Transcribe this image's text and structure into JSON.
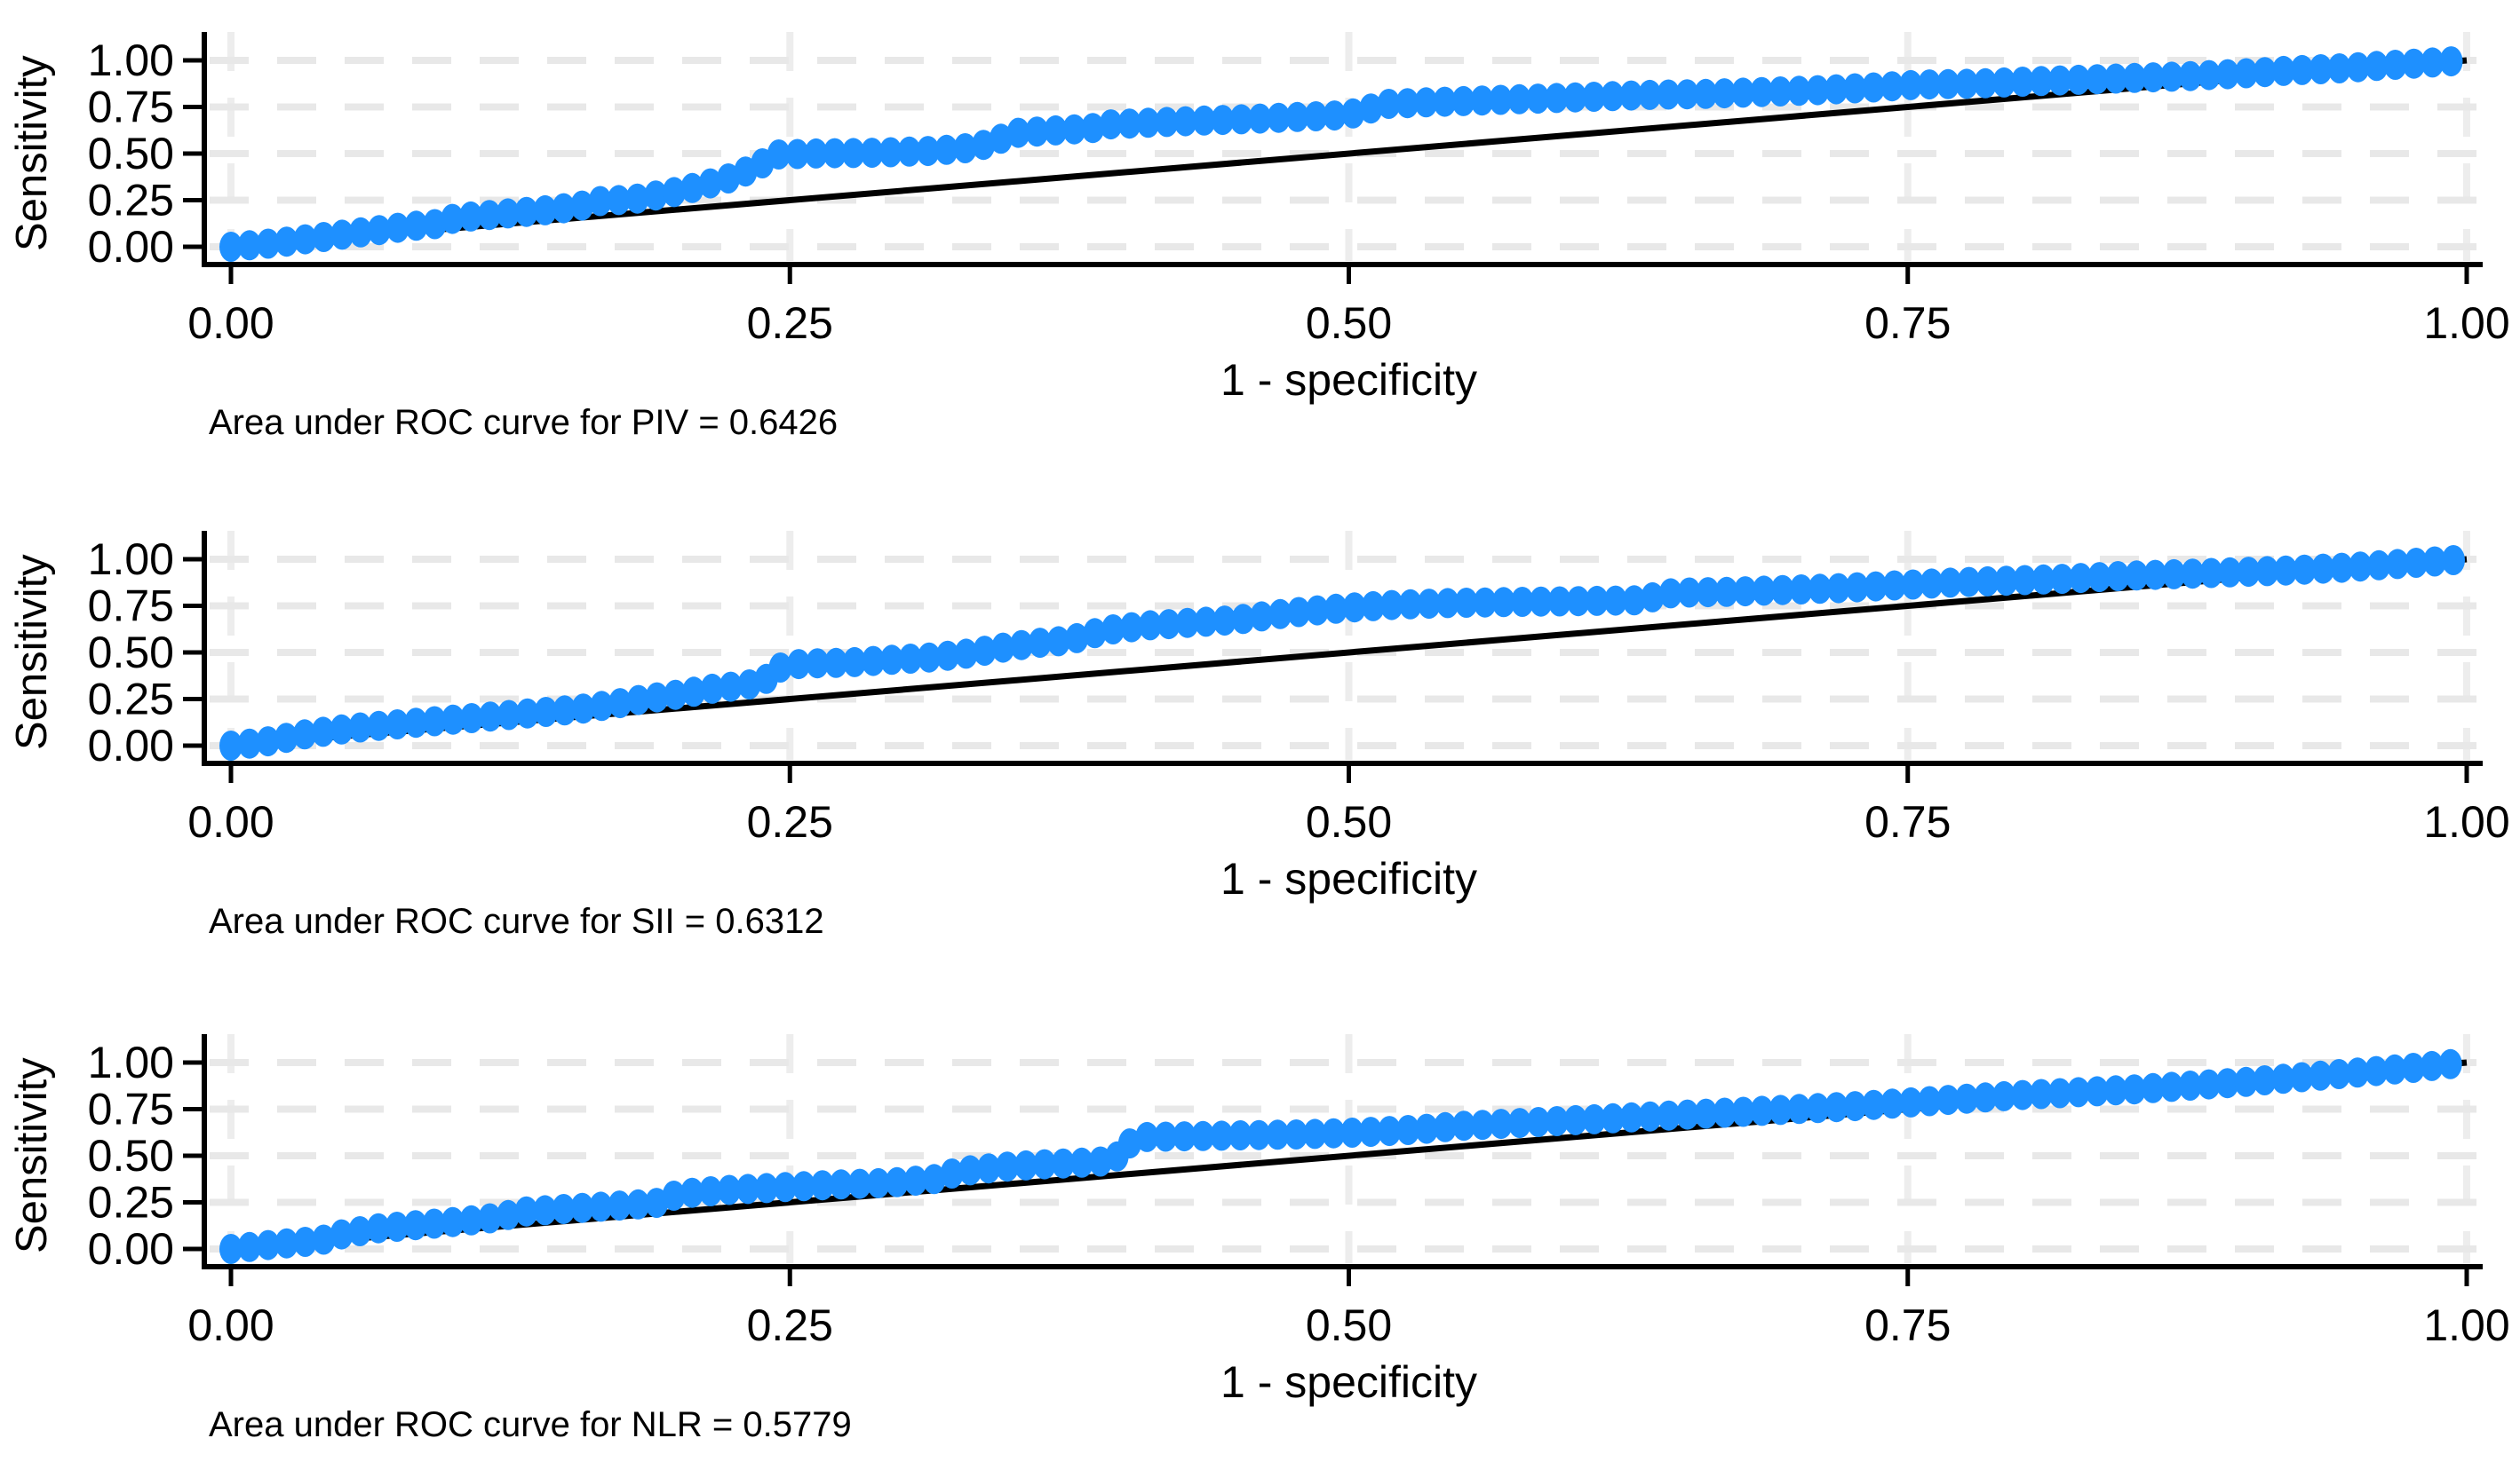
{
  "figure": {
    "background": "#ffffff",
    "dot_color": "#1E90FF",
    "reference_line_color": "#000000",
    "grid_color_horizontal": "#e8e8e8",
    "grid_color_vertical": "#ededed",
    "axis_color": "#000000",
    "text_color": "#000000"
  },
  "chart_data": [
    {
      "type": "scatter",
      "series_name": "PIV",
      "caption": "Area under ROC curve for PIV = 0.6426",
      "auc": 0.6426,
      "xlabel": "1 - specificity",
      "ylabel": "Sensitivity",
      "xlim": [
        0,
        1
      ],
      "ylim": [
        0,
        1
      ],
      "grid": true,
      "xticks": [
        "0.00",
        "0.25",
        "0.50",
        "0.75",
        "1.00"
      ],
      "yticks": [
        "0.00",
        "0.25",
        "0.50",
        "0.75",
        "1.00"
      ],
      "xtick_values": [
        0,
        0.25,
        0.5,
        0.75,
        1
      ],
      "ytick_values": [
        0,
        0.25,
        0.5,
        0.75,
        1
      ],
      "reference_line": [
        [
          0,
          0
        ],
        [
          1,
          1
        ]
      ],
      "roc_points": [
        [
          0,
          0
        ],
        [
          0.02,
          0.02
        ],
        [
          0.04,
          0.05
        ],
        [
          0.06,
          0.08
        ],
        [
          0.08,
          0.11
        ],
        [
          0.095,
          0.125
        ],
        [
          0.1,
          0.155
        ],
        [
          0.12,
          0.175
        ],
        [
          0.14,
          0.195
        ],
        [
          0.155,
          0.215
        ],
        [
          0.165,
          0.245
        ],
        [
          0.18,
          0.255
        ],
        [
          0.195,
          0.285
        ],
        [
          0.21,
          0.325
        ],
        [
          0.225,
          0.375
        ],
        [
          0.235,
          0.43
        ],
        [
          0.245,
          0.495
        ],
        [
          0.26,
          0.5
        ],
        [
          0.29,
          0.505
        ],
        [
          0.315,
          0.515
        ],
        [
          0.33,
          0.53
        ],
        [
          0.34,
          0.555
        ],
        [
          0.35,
          0.61
        ],
        [
          0.37,
          0.625
        ],
        [
          0.385,
          0.635
        ],
        [
          0.39,
          0.655
        ],
        [
          0.41,
          0.665
        ],
        [
          0.43,
          0.675
        ],
        [
          0.455,
          0.685
        ],
        [
          0.475,
          0.695
        ],
        [
          0.495,
          0.705
        ],
        [
          0.505,
          0.72
        ],
        [
          0.515,
          0.765
        ],
        [
          0.535,
          0.775
        ],
        [
          0.56,
          0.785
        ],
        [
          0.585,
          0.795
        ],
        [
          0.61,
          0.805
        ],
        [
          0.635,
          0.815
        ],
        [
          0.66,
          0.82
        ],
        [
          0.685,
          0.83
        ],
        [
          0.71,
          0.84
        ],
        [
          0.735,
          0.855
        ],
        [
          0.755,
          0.87
        ],
        [
          0.78,
          0.875
        ],
        [
          0.8,
          0.885
        ],
        [
          0.825,
          0.895
        ],
        [
          0.85,
          0.905
        ],
        [
          0.875,
          0.915
        ],
        [
          0.9,
          0.93
        ],
        [
          0.92,
          0.945
        ],
        [
          0.94,
          0.955
        ],
        [
          0.96,
          0.97
        ],
        [
          0.98,
          0.985
        ],
        [
          1,
          1
        ]
      ]
    },
    {
      "type": "scatter",
      "series_name": "SII",
      "caption": "Area under ROC curve for SII = 0.6312",
      "auc": 0.6312,
      "xlabel": "1 - specificity",
      "ylabel": "Sensitivity",
      "xlim": [
        0,
        1
      ],
      "ylim": [
        0,
        1
      ],
      "grid": true,
      "xticks": [
        "0.00",
        "0.25",
        "0.50",
        "0.75",
        "1.00"
      ],
      "yticks": [
        "0.00",
        "0.25",
        "0.50",
        "0.75",
        "1.00"
      ],
      "xtick_values": [
        0,
        0.25,
        0.5,
        0.75,
        1
      ],
      "ytick_values": [
        0,
        0.25,
        0.5,
        0.75,
        1
      ],
      "reference_line": [
        [
          0,
          0
        ],
        [
          1,
          1
        ]
      ],
      "roc_points": [
        [
          0,
          0
        ],
        [
          0.015,
          0.02
        ],
        [
          0.035,
          0.065
        ],
        [
          0.055,
          0.095
        ],
        [
          0.075,
          0.115
        ],
        [
          0.095,
          0.135
        ],
        [
          0.115,
          0.155
        ],
        [
          0.135,
          0.175
        ],
        [
          0.155,
          0.195
        ],
        [
          0.17,
          0.22
        ],
        [
          0.185,
          0.25
        ],
        [
          0.2,
          0.275
        ],
        [
          0.215,
          0.305
        ],
        [
          0.23,
          0.325
        ],
        [
          0.238,
          0.34
        ],
        [
          0.244,
          0.415
        ],
        [
          0.255,
          0.44
        ],
        [
          0.275,
          0.445
        ],
        [
          0.295,
          0.46
        ],
        [
          0.315,
          0.475
        ],
        [
          0.33,
          0.495
        ],
        [
          0.345,
          0.525
        ],
        [
          0.36,
          0.55
        ],
        [
          0.375,
          0.565
        ],
        [
          0.385,
          0.6
        ],
        [
          0.395,
          0.625
        ],
        [
          0.41,
          0.645
        ],
        [
          0.43,
          0.66
        ],
        [
          0.45,
          0.675
        ],
        [
          0.465,
          0.7
        ],
        [
          0.48,
          0.72
        ],
        [
          0.5,
          0.74
        ],
        [
          0.52,
          0.755
        ],
        [
          0.545,
          0.765
        ],
        [
          0.57,
          0.77
        ],
        [
          0.6,
          0.775
        ],
        [
          0.63,
          0.78
        ],
        [
          0.645,
          0.82
        ],
        [
          0.67,
          0.825
        ],
        [
          0.695,
          0.835
        ],
        [
          0.72,
          0.845
        ],
        [
          0.745,
          0.86
        ],
        [
          0.77,
          0.875
        ],
        [
          0.795,
          0.885
        ],
        [
          0.82,
          0.895
        ],
        [
          0.845,
          0.91
        ],
        [
          0.87,
          0.92
        ],
        [
          0.895,
          0.93
        ],
        [
          0.92,
          0.94
        ],
        [
          0.945,
          0.955
        ],
        [
          0.97,
          0.975
        ],
        [
          1,
          1
        ]
      ]
    },
    {
      "type": "scatter",
      "series_name": "NLR",
      "caption": "Area under ROC curve for NLR = 0.5779",
      "auc": 0.5779,
      "xlabel": "1 - specificity",
      "ylabel": "Sensitivity",
      "xlim": [
        0,
        1
      ],
      "ylim": [
        0,
        1
      ],
      "grid": true,
      "xticks": [
        "0.00",
        "0.25",
        "0.50",
        "0.75",
        "1.00"
      ],
      "yticks": [
        "0.00",
        "0.25",
        "0.50",
        "0.75",
        "1.00"
      ],
      "xtick_values": [
        0,
        0.25,
        0.5,
        0.75,
        1
      ],
      "ytick_values": [
        0,
        0.25,
        0.5,
        0.75,
        1
      ],
      "reference_line": [
        [
          0,
          0
        ],
        [
          1,
          1
        ]
      ],
      "roc_points": [
        [
          0,
          0
        ],
        [
          0.02,
          0.025
        ],
        [
          0.04,
          0.045
        ],
        [
          0.05,
          0.08
        ],
        [
          0.065,
          0.11
        ],
        [
          0.085,
          0.13
        ],
        [
          0.105,
          0.15
        ],
        [
          0.12,
          0.17
        ],
        [
          0.13,
          0.2
        ],
        [
          0.15,
          0.215
        ],
        [
          0.17,
          0.23
        ],
        [
          0.19,
          0.245
        ],
        [
          0.2,
          0.295
        ],
        [
          0.22,
          0.315
        ],
        [
          0.245,
          0.33
        ],
        [
          0.27,
          0.345
        ],
        [
          0.295,
          0.355
        ],
        [
          0.315,
          0.375
        ],
        [
          0.325,
          0.415
        ],
        [
          0.345,
          0.44
        ],
        [
          0.365,
          0.455
        ],
        [
          0.385,
          0.465
        ],
        [
          0.395,
          0.475
        ],
        [
          0.4,
          0.555
        ],
        [
          0.408,
          0.6
        ],
        [
          0.43,
          0.605
        ],
        [
          0.455,
          0.61
        ],
        [
          0.48,
          0.615
        ],
        [
          0.505,
          0.625
        ],
        [
          0.53,
          0.64
        ],
        [
          0.55,
          0.66
        ],
        [
          0.575,
          0.675
        ],
        [
          0.6,
          0.69
        ],
        [
          0.625,
          0.705
        ],
        [
          0.65,
          0.72
        ],
        [
          0.675,
          0.735
        ],
        [
          0.7,
          0.75
        ],
        [
          0.725,
          0.765
        ],
        [
          0.75,
          0.785
        ],
        [
          0.775,
          0.805
        ],
        [
          0.8,
          0.825
        ],
        [
          0.825,
          0.84
        ],
        [
          0.85,
          0.855
        ],
        [
          0.875,
          0.875
        ],
        [
          0.9,
          0.895
        ],
        [
          0.925,
          0.92
        ],
        [
          0.95,
          0.945
        ],
        [
          0.975,
          0.97
        ],
        [
          1,
          1
        ]
      ]
    }
  ]
}
